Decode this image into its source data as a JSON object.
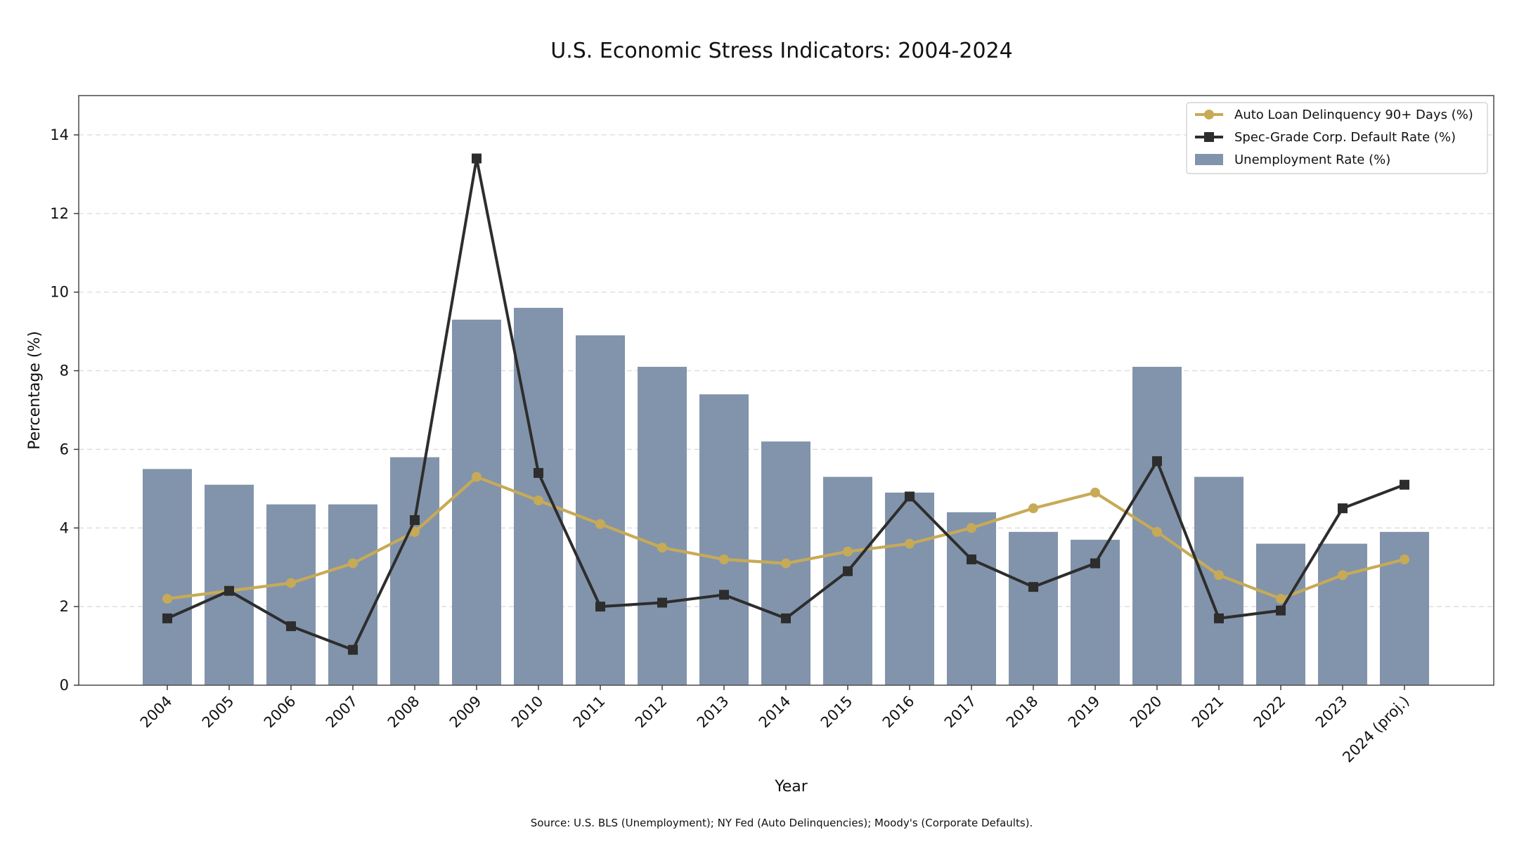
{
  "chart_data": {
    "type": "bar",
    "title": "U.S. Economic Stress Indicators: 2004-2024",
    "xlabel": "Year",
    "ylabel": "Percentage (%)",
    "ylim": [
      0,
      15
    ],
    "yticks": [
      0,
      2,
      4,
      6,
      8,
      10,
      12,
      14
    ],
    "yticklabels": [
      "0",
      "2",
      "4",
      "6",
      "8",
      "10",
      "12",
      "14"
    ],
    "grid": true,
    "legend_position": "top-right",
    "categories": [
      "2004",
      "2005",
      "2006",
      "2007",
      "2008",
      "2009",
      "2010",
      "2011",
      "2012",
      "2013",
      "2014",
      "2015",
      "2016",
      "2017",
      "2018",
      "2019",
      "2020",
      "2021",
      "2022",
      "2023",
      "2024 (proj.)"
    ],
    "series": [
      {
        "name": "Unemployment Rate (%)",
        "type": "bar",
        "color": "#8294ab",
        "values": [
          5.5,
          5.1,
          4.6,
          4.6,
          5.8,
          9.3,
          9.6,
          8.9,
          8.1,
          7.4,
          6.2,
          5.3,
          4.9,
          4.4,
          3.9,
          3.7,
          8.1,
          5.3,
          3.6,
          3.6,
          3.9
        ]
      },
      {
        "name": "Auto Loan Delinquency 90+ Days (%)",
        "type": "line",
        "marker": "circle",
        "color": "#c7aa57",
        "values": [
          2.2,
          2.4,
          2.6,
          3.1,
          3.9,
          5.3,
          4.7,
          4.1,
          3.5,
          3.2,
          3.1,
          3.4,
          3.6,
          4.0,
          4.5,
          4.9,
          3.9,
          2.8,
          2.2,
          2.8,
          3.2
        ]
      },
      {
        "name": "Spec-Grade Corp. Default Rate (%)",
        "type": "line",
        "marker": "square",
        "color": "#2d2d2d",
        "values": [
          1.7,
          2.4,
          1.5,
          0.9,
          4.2,
          13.4,
          5.4,
          2.0,
          2.1,
          2.3,
          1.7,
          2.9,
          4.8,
          3.2,
          2.5,
          3.1,
          5.7,
          1.7,
          1.9,
          4.5,
          5.1
        ]
      }
    ],
    "legend_order": [
      1,
      2,
      0
    ],
    "source_note": "Source: U.S. BLS (Unemployment); NY Fed (Auto Delinquencies); Moody's (Corporate Defaults)."
  }
}
